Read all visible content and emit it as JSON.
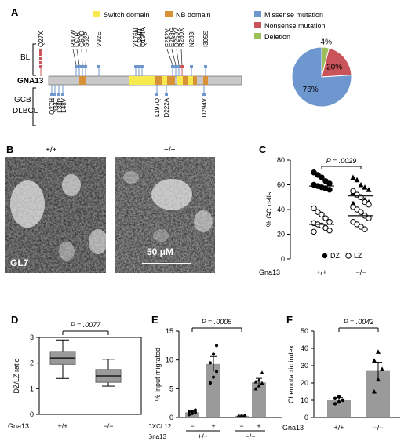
{
  "panels": {
    "A": "A",
    "B": "B",
    "C": "C",
    "D": "D",
    "E": "E",
    "F": "F"
  },
  "panelA": {
    "legend": {
      "switch": "Switch domain",
      "nb": "NB domain",
      "switch_color": "#f7ea4e",
      "nb_color": "#d99138"
    },
    "gene": "GNA13",
    "row_top": "BL",
    "row_bottom": [
      "GCB",
      "DLBCL"
    ],
    "top_mutations": [
      "Q27X",
      "R47W",
      "L51R",
      "G60D",
      "S62P",
      "V92E",
      "Y176N",
      "L184R",
      "Q194A",
      "F252V",
      "E258G",
      "D259V",
      "R260X",
      "N283I",
      "I305S"
    ],
    "bottom_mutations": [
      "Q27H",
      "I34T",
      "L38P",
      "L48V",
      "L197Q",
      "D222A",
      "D294V"
    ],
    "pie": {
      "legend": [
        "Missense mutation",
        "Nonsense mutation",
        "Deletion"
      ],
      "colors": [
        "#6f97cf",
        "#c9545a",
        "#9dbf5a"
      ],
      "labels": [
        "76%",
        "20%",
        "4%"
      ],
      "values": [
        76,
        20,
        4
      ]
    }
  },
  "panelB": {
    "wt": "+/+",
    "ko": "−/−",
    "stain": "GL7",
    "scale": "50 μM"
  },
  "chart_data": [
    {
      "panel": "C",
      "type": "scatter",
      "ylabel": "% GC cells",
      "ylim": [
        0,
        80
      ],
      "yticks": [
        "0",
        "20",
        "40",
        "60",
        "80"
      ],
      "pvalue": "P = .0029",
      "xlabel_row": "Gna13",
      "categories": [
        "+/+",
        "−/−"
      ],
      "legend": [
        "DZ",
        "LZ"
      ],
      "series": [
        {
          "name": "DZ",
          "group": "+/+",
          "values": [
            70,
            68,
            66,
            63,
            61,
            60,
            59,
            58,
            57,
            56
          ]
        },
        {
          "name": "LZ",
          "group": "+/+",
          "values": [
            41,
            38,
            36,
            33,
            30,
            29,
            28,
            27,
            25,
            23,
            22
          ]
        },
        {
          "name": "DZ",
          "group": "−/−",
          "values": [
            66,
            64,
            60,
            58,
            56,
            54,
            52,
            50,
            48,
            46,
            45
          ]
        },
        {
          "name": "LZ",
          "group": "−/−",
          "values": [
            55,
            52,
            50,
            46,
            44,
            42,
            40,
            38,
            35,
            33,
            30,
            28,
            26,
            24
          ]
        }
      ],
      "means": {
        "+/+": [
          59,
          28
        ],
        "−/−": [
          51,
          35
        ]
      }
    },
    {
      "panel": "D",
      "type": "box",
      "ylabel": "DZ/LZ ratio",
      "ylim": [
        0,
        3
      ],
      "yticks": [
        "0",
        "1",
        "2",
        "3"
      ],
      "pvalue": "P = .0077",
      "xlabel_row": "Gna13",
      "categories": [
        "+/+",
        "−/−"
      ],
      "boxes": [
        {
          "min": 1.4,
          "q1": 1.95,
          "median": 2.2,
          "q3": 2.45,
          "max": 2.9
        },
        {
          "min": 1.1,
          "q1": 1.25,
          "median": 1.5,
          "q3": 1.75,
          "max": 2.15
        }
      ]
    },
    {
      "panel": "E",
      "type": "bar",
      "ylabel": "% Input migrated",
      "ylim": [
        0,
        15
      ],
      "yticks": [
        "0",
        "5",
        "10",
        "15"
      ],
      "pvalue": "P = .0005",
      "row1_label": "CXCL12",
      "row1": [
        "−",
        "+",
        "−",
        "+"
      ],
      "row2_label": "Gna13",
      "row2": [
        "+/+",
        "−/−"
      ],
      "values": [
        0.9,
        9.3,
        0.3,
        6.1
      ],
      "errors": [
        0.2,
        1.3,
        0.1,
        0.7
      ],
      "points": [
        [
          0.5,
          0.7,
          0.9,
          1.0,
          1.1,
          1.3
        ],
        [
          6,
          7,
          8,
          9.5,
          11,
          12.5
        ],
        [
          0.2,
          0.25,
          0.3,
          0.3,
          0.35,
          0.4
        ],
        [
          5,
          5.5,
          6,
          6.2,
          6.5,
          7.8
        ]
      ]
    },
    {
      "panel": "F",
      "type": "bar",
      "ylabel": "Chemotactic index",
      "ylim": [
        0,
        50
      ],
      "yticks": [
        "0",
        "10",
        "20",
        "30",
        "40",
        "50"
      ],
      "pvalue": "P = .0042",
      "xlabel_row": "Gna13",
      "categories": [
        "+/+",
        "−/−"
      ],
      "values": [
        10,
        27
      ],
      "errors": [
        1.5,
        5
      ],
      "points": [
        [
          8,
          9,
          10,
          11,
          12
        ],
        [
          15,
          22,
          28,
          33,
          38
        ]
      ]
    }
  ]
}
